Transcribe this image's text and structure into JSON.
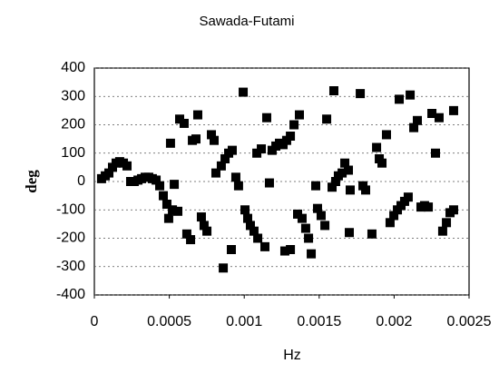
{
  "chart_data": {
    "type": "scatter",
    "title": "Sawada-Futami",
    "x_label": "Hz",
    "y_label": "deg",
    "series": [
      {
        "color": "#000000",
        "x": [
          4.8e-05,
          7.3e-05,
          9.7e-05,
          0.000121,
          0.000145,
          0.000169,
          0.000194,
          0.000218,
          0.000242,
          0.000266,
          0.000291,
          0.000315,
          0.000339,
          0.000363,
          0.000387,
          0.000412,
          0.000436,
          0.00046,
          0.000484,
          0.000496,
          0.000521,
          0.000557,
          0.000508,
          0.000533,
          0.000569,
          0.000599,
          0.000654,
          0.000678,
          0.00069,
          0.000714,
          0.000732,
          0.000751,
          0.000617,
          0.000642,
          0.000781,
          0.000799,
          0.000811,
          0.000847,
          0.000872,
          0.000896,
          0.00092,
          0.00086,
          0.000914,
          0.000944,
          0.000962,
          0.000993,
          0.001005,
          0.001023,
          0.001041,
          0.001065,
          0.00109,
          0.001084,
          0.001114,
          0.001138,
          0.00115,
          0.001168,
          0.001186,
          0.001211,
          0.001235,
          0.001259,
          0.001283,
          0.001308,
          0.001332,
          0.001368,
          0.001308,
          0.001271,
          0.001356,
          0.001386,
          0.00141,
          0.001429,
          0.001447,
          0.001477,
          0.001489,
          0.001513,
          0.001538,
          0.00155,
          0.001586,
          0.00161,
          0.001628,
          0.001653,
          0.001671,
          0.001695,
          0.001707,
          0.001598,
          0.001701,
          0.001774,
          0.001792,
          0.00181,
          0.001852,
          0.001883,
          0.001901,
          0.001919,
          0.001949,
          0.001973,
          0.001998,
          0.002022,
          0.002046,
          0.00207,
          0.002094,
          0.002034,
          0.002107,
          0.002131,
          0.002155,
          0.002179,
          0.002203,
          0.002228,
          0.002252,
          0.002276,
          0.0023,
          0.002324,
          0.002349,
          0.002373,
          0.002397,
          0.002397
        ],
        "y": [
          10,
          20,
          30,
          50,
          65,
          70,
          65,
          55,
          0,
          0,
          5,
          10,
          15,
          15,
          10,
          5,
          -15,
          -50,
          -80,
          -130,
          -100,
          -105,
          135,
          -10,
          220,
          205,
          145,
          150,
          235,
          -125,
          -155,
          -175,
          -185,
          -205,
          165,
          145,
          30,
          55,
          80,
          100,
          110,
          -305,
          -240,
          15,
          -15,
          315,
          -100,
          -130,
          -155,
          -175,
          -200,
          100,
          115,
          -230,
          225,
          -5,
          110,
          125,
          135,
          130,
          145,
          160,
          200,
          235,
          -240,
          -245,
          -115,
          -130,
          -165,
          -200,
          -255,
          -15,
          -95,
          -120,
          -155,
          220,
          -20,
          0,
          20,
          30,
          65,
          40,
          -30,
          320,
          -180,
          310,
          -15,
          -30,
          -185,
          120,
          80,
          65,
          165,
          -145,
          -120,
          -100,
          -85,
          -70,
          -55,
          290,
          305,
          190,
          215,
          -90,
          -85,
          -90,
          240,
          100,
          225,
          -175,
          -145,
          -110,
          -100,
          250
        ]
      }
    ],
    "xlim": [
      0,
      0.0025
    ],
    "ylim": [
      -400,
      400
    ],
    "xticks": [
      0,
      0.0005,
      0.001,
      0.0015,
      0.002,
      0.0025
    ],
    "yticks": [
      -400,
      -300,
      -200,
      -100,
      0,
      100,
      200,
      300,
      400
    ],
    "grid": true
  }
}
